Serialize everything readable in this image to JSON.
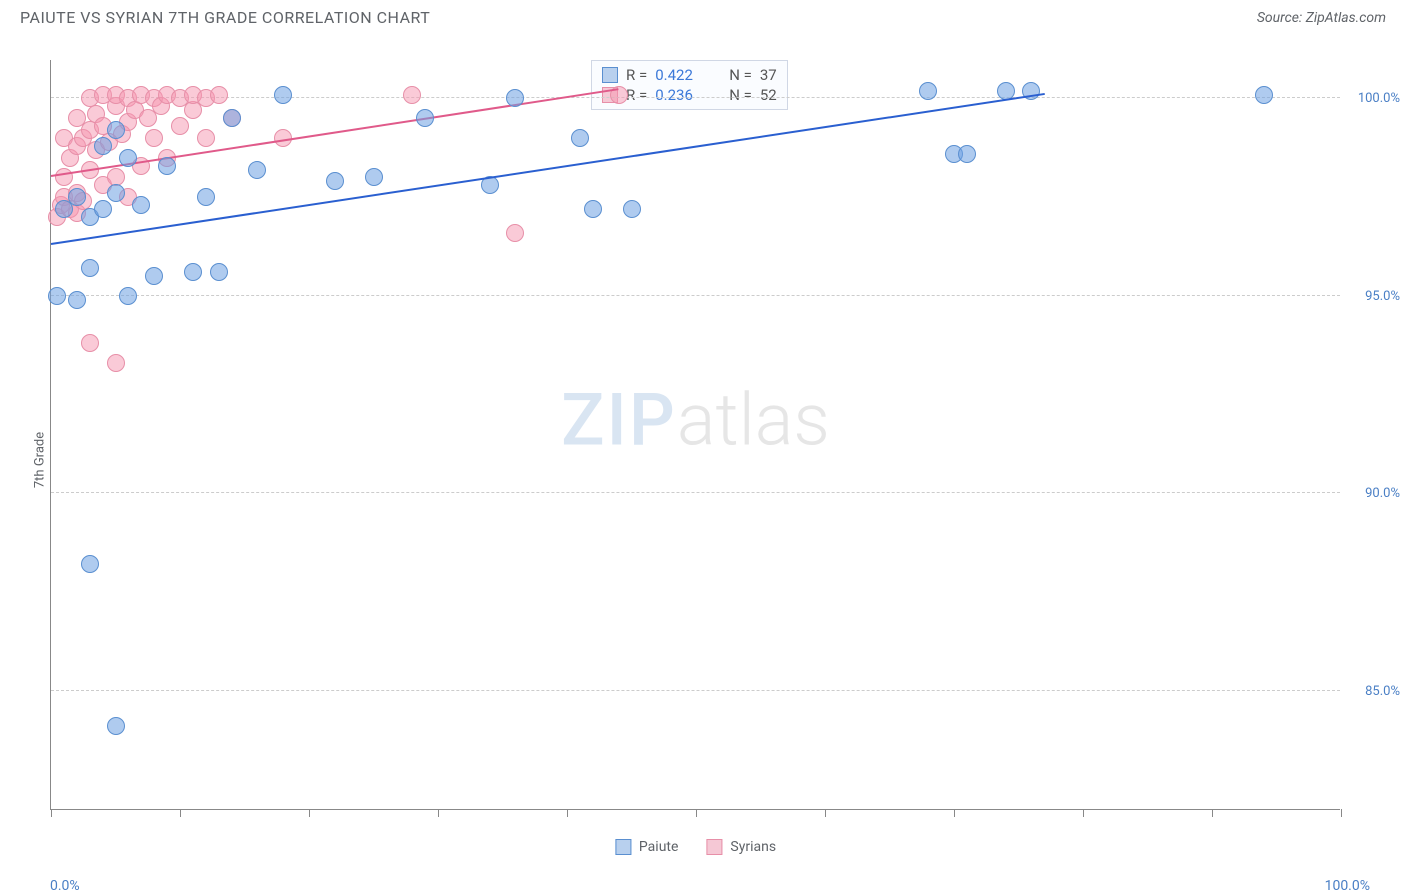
{
  "title": "PAIUTE VS SYRIAN 7TH GRADE CORRELATION CHART",
  "source": "Source: ZipAtlas.com",
  "y_axis_title": "7th Grade",
  "chart": {
    "type": "scatter",
    "xlim": [
      0,
      100
    ],
    "ylim": [
      82,
      101
    ],
    "x_tick_positions": [
      0,
      10,
      20,
      30,
      40,
      50,
      60,
      70,
      80,
      90,
      100
    ],
    "y_ticks": [
      {
        "v": 85,
        "label": "85.0%"
      },
      {
        "v": 90,
        "label": "90.0%"
      },
      {
        "v": 95,
        "label": "95.0%"
      },
      {
        "v": 100,
        "label": "100.0%"
      }
    ],
    "x_labels": {
      "min": "0.0%",
      "max": "100.0%"
    },
    "background_color": "#ffffff",
    "grid_color": "#cccccc",
    "series": [
      {
        "name": "Paiute",
        "color_fill": "rgba(110,160,225,0.55)",
        "color_stroke": "#5a8fd0",
        "line_color": "#2a5fd0",
        "marker_r": 9,
        "R": "0.422",
        "N": "37",
        "trend": {
          "x1": 0,
          "y1": 96.3,
          "x2": 77,
          "y2": 100.1
        },
        "points": [
          {
            "x": 0.5,
            "y": 95.0
          },
          {
            "x": 2,
            "y": 94.9
          },
          {
            "x": 3,
            "y": 88.2
          },
          {
            "x": 5,
            "y": 84.1
          },
          {
            "x": 1,
            "y": 97.2
          },
          {
            "x": 2,
            "y": 97.5
          },
          {
            "x": 3,
            "y": 97.0
          },
          {
            "x": 4,
            "y": 97.2
          },
          {
            "x": 5,
            "y": 97.6
          },
          {
            "x": 3,
            "y": 95.7
          },
          {
            "x": 6,
            "y": 95.0
          },
          {
            "x": 7,
            "y": 97.3
          },
          {
            "x": 4,
            "y": 98.8
          },
          {
            "x": 5,
            "y": 99.2
          },
          {
            "x": 6,
            "y": 98.5
          },
          {
            "x": 8,
            "y": 95.5
          },
          {
            "x": 9,
            "y": 98.3
          },
          {
            "x": 11,
            "y": 95.6
          },
          {
            "x": 12,
            "y": 97.5
          },
          {
            "x": 13,
            "y": 95.6
          },
          {
            "x": 14,
            "y": 99.5
          },
          {
            "x": 16,
            "y": 98.2
          },
          {
            "x": 18,
            "y": 100.1
          },
          {
            "x": 22,
            "y": 97.9
          },
          {
            "x": 25,
            "y": 98.0
          },
          {
            "x": 29,
            "y": 99.5
          },
          {
            "x": 34,
            "y": 97.8
          },
          {
            "x": 36,
            "y": 100.0
          },
          {
            "x": 41,
            "y": 99.0
          },
          {
            "x": 42,
            "y": 97.2
          },
          {
            "x": 45,
            "y": 97.2
          },
          {
            "x": 68,
            "y": 100.2
          },
          {
            "x": 70,
            "y": 98.6
          },
          {
            "x": 71,
            "y": 98.6
          },
          {
            "x": 74,
            "y": 100.2
          },
          {
            "x": 76,
            "y": 100.2
          },
          {
            "x": 94,
            "y": 100.1
          }
        ]
      },
      {
        "name": "Syrians",
        "color_fill": "rgba(245,150,175,0.5)",
        "color_stroke": "#e78fa8",
        "line_color": "#e05a8a",
        "marker_r": 9,
        "R": "0.236",
        "N": "52",
        "trend": {
          "x1": 0,
          "y1": 98.0,
          "x2": 44,
          "y2": 100.2
        },
        "points": [
          {
            "x": 0.5,
            "y": 97.0
          },
          {
            "x": 0.8,
            "y": 97.3
          },
          {
            "x": 1,
            "y": 97.5
          },
          {
            "x": 1,
            "y": 98.0
          },
          {
            "x": 1,
            "y": 99.0
          },
          {
            "x": 1.5,
            "y": 97.2
          },
          {
            "x": 1.5,
            "y": 98.5
          },
          {
            "x": 2,
            "y": 97.1
          },
          {
            "x": 2,
            "y": 97.6
          },
          {
            "x": 2,
            "y": 98.8
          },
          {
            "x": 2,
            "y": 99.5
          },
          {
            "x": 2.5,
            "y": 97.4
          },
          {
            "x": 2.5,
            "y": 99.0
          },
          {
            "x": 3,
            "y": 98.2
          },
          {
            "x": 3,
            "y": 99.2
          },
          {
            "x": 3,
            "y": 100.0
          },
          {
            "x": 3.5,
            "y": 98.7
          },
          {
            "x": 3.5,
            "y": 99.6
          },
          {
            "x": 4,
            "y": 97.8
          },
          {
            "x": 4,
            "y": 99.3
          },
          {
            "x": 4,
            "y": 100.1
          },
          {
            "x": 4.5,
            "y": 98.9
          },
          {
            "x": 5,
            "y": 98.0
          },
          {
            "x": 5,
            "y": 99.8
          },
          {
            "x": 5,
            "y": 100.1
          },
          {
            "x": 5.5,
            "y": 99.1
          },
          {
            "x": 6,
            "y": 97.5
          },
          {
            "x": 6,
            "y": 99.4
          },
          {
            "x": 6,
            "y": 100.0
          },
          {
            "x": 6.5,
            "y": 99.7
          },
          {
            "x": 7,
            "y": 98.3
          },
          {
            "x": 7,
            "y": 100.1
          },
          {
            "x": 7.5,
            "y": 99.5
          },
          {
            "x": 8,
            "y": 99.0
          },
          {
            "x": 8,
            "y": 100.0
          },
          {
            "x": 8.5,
            "y": 99.8
          },
          {
            "x": 9,
            "y": 98.5
          },
          {
            "x": 9,
            "y": 100.1
          },
          {
            "x": 10,
            "y": 99.3
          },
          {
            "x": 10,
            "y": 100.0
          },
          {
            "x": 11,
            "y": 99.7
          },
          {
            "x": 11,
            "y": 100.1
          },
          {
            "x": 12,
            "y": 99.0
          },
          {
            "x": 12,
            "y": 100.0
          },
          {
            "x": 13,
            "y": 100.1
          },
          {
            "x": 14,
            "y": 99.5
          },
          {
            "x": 18,
            "y": 99.0
          },
          {
            "x": 28,
            "y": 100.1
          },
          {
            "x": 3,
            "y": 93.8
          },
          {
            "x": 5,
            "y": 93.3
          },
          {
            "x": 36,
            "y": 96.6
          },
          {
            "x": 44,
            "y": 100.1
          }
        ]
      }
    ]
  },
  "legend": {
    "swatch_blue_fill": "#b8d0ee",
    "swatch_blue_border": "#5a8fd0",
    "swatch_pink_fill": "#f5c8d5",
    "swatch_pink_border": "#e78fa8"
  },
  "watermark": {
    "part1": "ZIP",
    "part2": "atlas"
  }
}
